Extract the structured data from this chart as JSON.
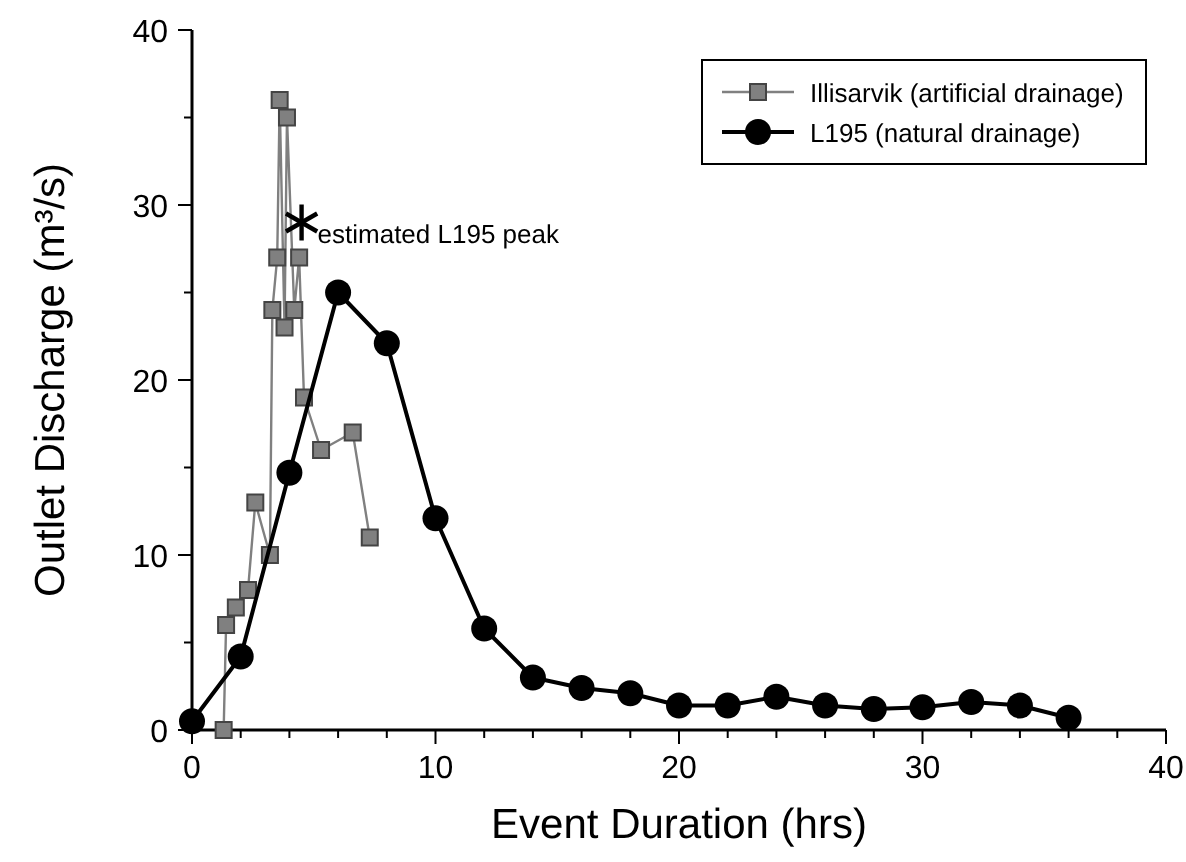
{
  "chart_data": {
    "type": "line",
    "xlabel": "Event Duration (hrs)",
    "ylabel": "Outlet Discharge (m³/s)",
    "xlim": [
      0,
      40
    ],
    "ylim": [
      0,
      40
    ],
    "xticks": [
      0,
      {
        "value": 2,
        "label": null
      },
      {
        "value": 4,
        "label": null
      },
      {
        "value": 6,
        "label": null
      },
      {
        "value": 8,
        "label": null
      },
      10,
      {
        "value": 12,
        "label": null
      },
      {
        "value": 14,
        "label": null
      },
      {
        "value": 16,
        "label": null
      },
      {
        "value": 18,
        "label": null
      },
      20,
      {
        "value": 22,
        "label": null
      },
      {
        "value": 24,
        "label": null
      },
      {
        "value": 26,
        "label": null
      },
      {
        "value": 28,
        "label": null
      },
      30,
      {
        "value": 32,
        "label": null
      },
      {
        "value": 34,
        "label": null
      },
      {
        "value": 36,
        "label": null
      },
      {
        "value": 38,
        "label": null
      },
      40
    ],
    "yticks": [
      0,
      {
        "value": 5,
        "label": null
      },
      10,
      {
        "value": 15,
        "label": null
      },
      20,
      {
        "value": 25,
        "label": null
      },
      30,
      {
        "value": 35,
        "label": null
      },
      40
    ],
    "legend": "top right",
    "grid": false,
    "series": [
      {
        "name": "Illisarvik (artificial drainage)",
        "color": "#808080",
        "marker": "square",
        "x": [
          1.3,
          1.4,
          1.8,
          2.3,
          2.6,
          3.2,
          3.3,
          3.5,
          3.6,
          3.8,
          3.9,
          4.2,
          4.4,
          4.6,
          5.3,
          6.6,
          7.3
        ],
        "values": [
          0,
          6,
          7,
          8,
          13,
          10,
          24,
          27,
          36,
          23,
          35,
          24,
          27,
          19,
          16,
          17,
          11
        ]
      },
      {
        "name": "L195 (natural drainage)",
        "color": "#000000",
        "marker": "circle",
        "x": [
          0,
          2,
          4,
          6,
          8,
          10,
          12,
          14,
          16,
          18,
          20,
          22,
          24,
          26,
          28,
          30,
          32,
          34,
          36
        ],
        "values": [
          0.5,
          4.2,
          14.7,
          25,
          22.1,
          12.1,
          5.8,
          3.0,
          2.4,
          2.1,
          1.4,
          1.4,
          1.9,
          1.4,
          1.2,
          1.3,
          1.6,
          1.4,
          0.7
        ]
      }
    ],
    "annotations": [
      {
        "text": "estimated L195 peak",
        "x": 4.5,
        "y": 29
      }
    ]
  }
}
